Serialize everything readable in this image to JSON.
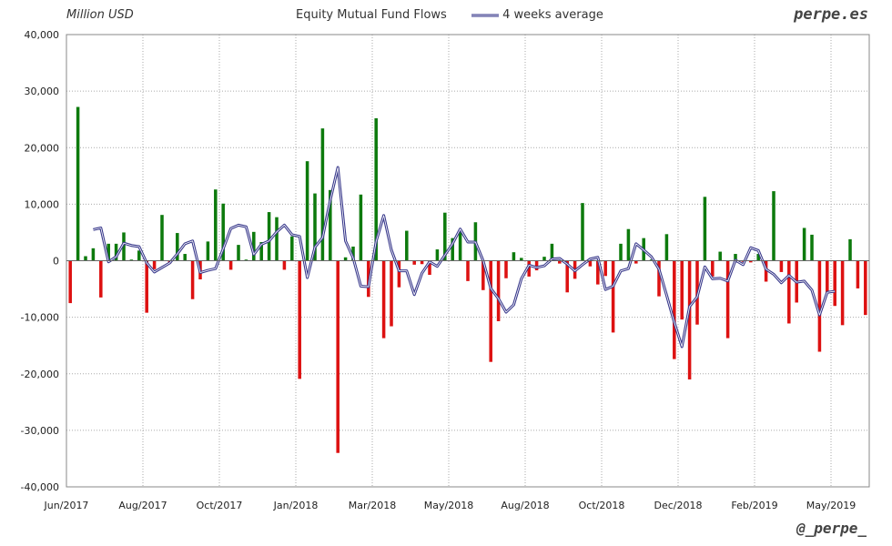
{
  "header": {
    "unit_label": "Million USD",
    "title": "Equity Mutual Fund Flows",
    "legend_label": "4 weeks average",
    "watermark_top": "perpe.es",
    "watermark_bottom": "@_perpe_"
  },
  "chart_data": {
    "type": "bar",
    "title": "Equity Mutual Fund Flows",
    "ylabel": "Million USD",
    "xlabel": "",
    "ylim": [
      -40000,
      40000
    ],
    "y_ticks": [
      40000,
      30000,
      20000,
      10000,
      0,
      -10000,
      -20000,
      -30000,
      -40000
    ],
    "y_tick_labels": [
      "40,000",
      "30,000",
      "20,000",
      "10,000",
      "0",
      "-10,000",
      "-20,000",
      "-30,000",
      "-40,000"
    ],
    "x_tick_labels": [
      "Jun/2017",
      "Aug/2017",
      "Oct/2017",
      "Jan/2018",
      "Mar/2018",
      "May/2018",
      "Aug/2018",
      "Oct/2018",
      "Dec/2018",
      "Feb/2019",
      "May/2019"
    ],
    "grid": true,
    "colors": {
      "positive": "#0d7a0d",
      "negative": "#dd1111",
      "average_line": "#3a3a8c"
    },
    "series": [
      {
        "name": "",
        "type": "bar",
        "values": [
          -7500,
          27200,
          800,
          2200,
          -6500,
          3000,
          3000,
          5000,
          200,
          1800,
          -9200,
          -1500,
          8100,
          -500,
          4900,
          1200,
          -6800,
          -3300,
          3400,
          12600,
          10100,
          -1600,
          2800,
          200,
          5100,
          3300,
          8600,
          7700,
          -1600,
          4300,
          -20900,
          17600,
          11900,
          23400,
          12500,
          -34000,
          600,
          2500,
          11700,
          -6400,
          25200,
          -13700,
          -11600,
          -4700,
          5300,
          -700,
          -600,
          -2500,
          2000,
          8500,
          4000,
          5300,
          -3600,
          6800,
          -5200,
          -17900,
          -10700,
          -3100,
          1500,
          500,
          -2800,
          -1700,
          700,
          3000,
          -500,
          -5600,
          -3200,
          10200,
          -1000,
          -4200,
          -2700,
          -12700,
          3000,
          5600,
          -500,
          4000,
          200,
          -6300,
          4700,
          -17400,
          -10400,
          -21000,
          -11300,
          11300,
          -2800,
          1600,
          -13700,
          1200,
          -200,
          -300,
          1200,
          -3700,
          12300,
          -2000,
          -11100,
          -7400,
          5800,
          4600,
          -16100,
          -5800,
          -8000,
          -11400,
          3800,
          -4900,
          -9600
        ]
      },
      {
        "name": "4 weeks average",
        "type": "line",
        "start_index": 3,
        "values": [
          5500,
          5800,
          -200,
          700,
          3100,
          2700,
          2500,
          -400,
          -2000,
          -1200,
          -400,
          1200,
          3000,
          3500,
          -2100,
          -1700,
          -1400,
          2100,
          5700,
          6300,
          6000,
          1100,
          2900,
          3500,
          5100,
          6300,
          4600,
          4300,
          -3000,
          2400,
          4100,
          10700,
          16500,
          3500,
          500,
          -4500,
          -4600,
          3400,
          8000,
          1900,
          -1800,
          -1800,
          -6000,
          -2200,
          -200,
          -1000,
          1000,
          3000,
          5600,
          3300,
          3300,
          0,
          -4900,
          -6700,
          -9100,
          -7800,
          -3200,
          -800,
          -1200,
          -900,
          300,
          400,
          -600,
          -1800,
          -700,
          300,
          600,
          -5100,
          -4500,
          -1800,
          -1400,
          3000,
          1900,
          700,
          -1500,
          -6100,
          -10900,
          -15200,
          -8100,
          -6400,
          -1100,
          -3200,
          -3100,
          -3600,
          100,
          -700,
          2300,
          1800,
          -1500,
          -2400,
          -3900,
          -2600,
          -3800,
          -3600,
          -5200,
          -9600,
          -5600,
          -5400
        ]
      }
    ]
  }
}
